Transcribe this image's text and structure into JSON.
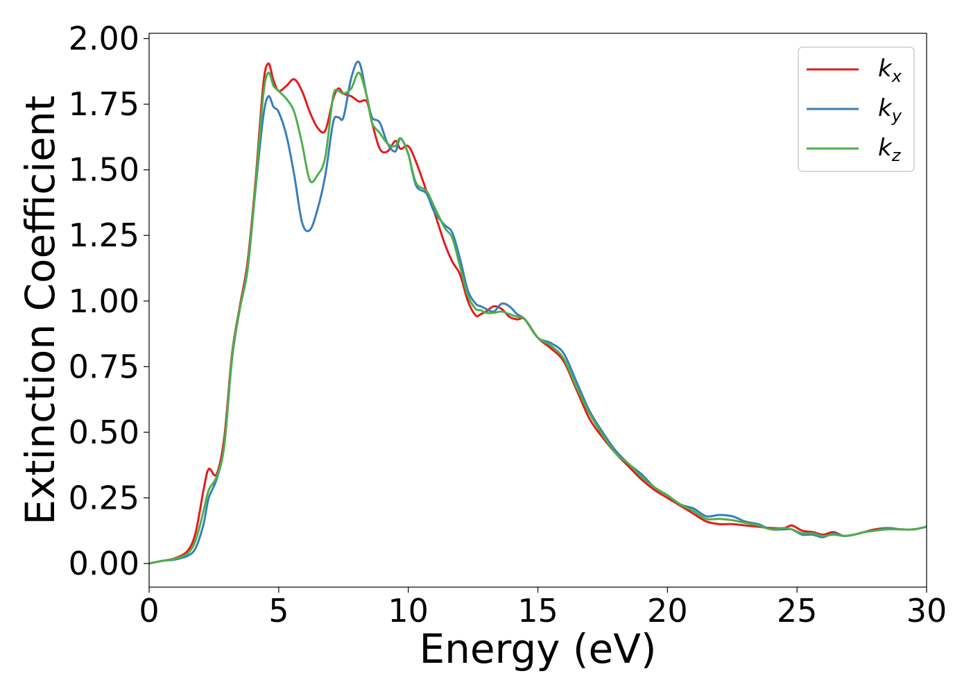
{
  "chart_data": {
    "type": "line",
    "title": "",
    "xlabel": "Energy (eV)",
    "ylabel": "Extinction Coefficient",
    "xlim": [
      0,
      30
    ],
    "ylim": [
      -0.09,
      2.02
    ],
    "xticks": [
      0,
      5,
      10,
      15,
      20,
      25,
      30
    ],
    "xtick_labels": [
      "0",
      "5",
      "10",
      "15",
      "20",
      "25",
      "30"
    ],
    "yticks": [
      0,
      0.25,
      0.5,
      0.75,
      1.0,
      1.25,
      1.5,
      1.75,
      2.0
    ],
    "ytick_labels": [
      "0.00",
      "0.25",
      "0.50",
      "0.75",
      "1.00",
      "1.25",
      "1.50",
      "1.75",
      "2.00"
    ],
    "grid": false,
    "legend": {
      "position": "top-right"
    },
    "series": [
      {
        "name": "k_x",
        "label_base": "k",
        "label_sub": "x",
        "color": "#e41a1c",
        "x": [
          0,
          0.5,
          1.0,
          1.5,
          1.8,
          2.1,
          2.3,
          2.6,
          2.9,
          3.2,
          3.5,
          3.8,
          4.1,
          4.4,
          4.6,
          4.8,
          5.0,
          5.3,
          5.6,
          5.9,
          6.2,
          6.5,
          6.8,
          7.1,
          7.3,
          7.5,
          7.8,
          8.1,
          8.4,
          8.6,
          8.9,
          9.2,
          9.5,
          9.7,
          10.0,
          10.3,
          10.7,
          11.0,
          11.4,
          11.7,
          12.0,
          12.3,
          12.6,
          12.8,
          13.0,
          13.3,
          13.6,
          13.9,
          14.2,
          14.5,
          15.0,
          15.5,
          16.0,
          16.5,
          17.0,
          17.5,
          18.0,
          18.5,
          19.0,
          19.5,
          20.0,
          20.5,
          21.0,
          21.5,
          22.0,
          22.5,
          23.0,
          23.5,
          24.0,
          24.5,
          24.8,
          25.2,
          25.6,
          26.0,
          26.4,
          26.8,
          27.2,
          27.6,
          28.0,
          28.5,
          29.0,
          29.5,
          30.0
        ],
        "y": [
          0.0,
          0.01,
          0.02,
          0.05,
          0.12,
          0.28,
          0.36,
          0.34,
          0.48,
          0.8,
          0.98,
          1.15,
          1.45,
          1.82,
          1.905,
          1.84,
          1.8,
          1.82,
          1.845,
          1.8,
          1.72,
          1.66,
          1.65,
          1.77,
          1.81,
          1.79,
          1.78,
          1.76,
          1.76,
          1.68,
          1.58,
          1.57,
          1.61,
          1.58,
          1.59,
          1.53,
          1.42,
          1.34,
          1.22,
          1.15,
          1.1,
          1.0,
          0.945,
          0.95,
          0.96,
          0.98,
          0.97,
          0.94,
          0.93,
          0.93,
          0.86,
          0.82,
          0.77,
          0.66,
          0.55,
          0.48,
          0.42,
          0.37,
          0.32,
          0.28,
          0.25,
          0.22,
          0.19,
          0.16,
          0.15,
          0.15,
          0.145,
          0.14,
          0.135,
          0.135,
          0.145,
          0.125,
          0.12,
          0.11,
          0.12,
          0.105,
          0.11,
          0.12,
          0.13,
          0.135,
          0.13,
          0.13,
          0.14
        ]
      },
      {
        "name": "k_y",
        "label_base": "k",
        "label_sub": "y",
        "color": "#377eb8",
        "x": [
          0,
          0.5,
          1.0,
          1.5,
          1.8,
          2.1,
          2.3,
          2.6,
          2.9,
          3.2,
          3.5,
          3.8,
          4.1,
          4.4,
          4.6,
          4.8,
          5.0,
          5.3,
          5.6,
          5.9,
          6.2,
          6.5,
          6.8,
          7.1,
          7.3,
          7.5,
          7.8,
          8.1,
          8.4,
          8.6,
          8.9,
          9.2,
          9.5,
          9.7,
          10.0,
          10.3,
          10.7,
          11.0,
          11.4,
          11.7,
          12.0,
          12.3,
          12.6,
          12.8,
          13.0,
          13.3,
          13.6,
          13.9,
          14.2,
          14.5,
          15.0,
          15.5,
          16.0,
          16.5,
          17.0,
          17.5,
          18.0,
          18.5,
          19.0,
          19.5,
          20.0,
          20.5,
          21.0,
          21.5,
          22.0,
          22.5,
          23.0,
          23.5,
          24.0,
          24.5,
          24.8,
          25.2,
          25.6,
          26.0,
          26.4,
          26.8,
          27.2,
          27.6,
          28.0,
          28.5,
          29.0,
          29.5,
          30.0
        ],
        "y": [
          0.0,
          0.01,
          0.015,
          0.03,
          0.06,
          0.15,
          0.25,
          0.32,
          0.45,
          0.78,
          0.97,
          1.12,
          1.42,
          1.7,
          1.78,
          1.74,
          1.72,
          1.63,
          1.48,
          1.3,
          1.27,
          1.35,
          1.48,
          1.68,
          1.7,
          1.7,
          1.85,
          1.91,
          1.78,
          1.7,
          1.68,
          1.6,
          1.57,
          1.62,
          1.56,
          1.44,
          1.41,
          1.34,
          1.29,
          1.26,
          1.16,
          1.04,
          0.99,
          0.98,
          0.97,
          0.96,
          0.99,
          0.98,
          0.95,
          0.93,
          0.86,
          0.84,
          0.8,
          0.69,
          0.58,
          0.5,
          0.43,
          0.38,
          0.34,
          0.29,
          0.26,
          0.225,
          0.21,
          0.18,
          0.185,
          0.18,
          0.16,
          0.15,
          0.13,
          0.13,
          0.13,
          0.11,
          0.11,
          0.1,
          0.115,
          0.105,
          0.11,
          0.12,
          0.125,
          0.135,
          0.13,
          0.13,
          0.14
        ]
      },
      {
        "name": "k_z",
        "label_base": "k",
        "label_sub": "z",
        "color": "#4daf4a",
        "x": [
          0,
          0.5,
          1.0,
          1.5,
          1.8,
          2.1,
          2.3,
          2.6,
          2.9,
          3.2,
          3.5,
          3.8,
          4.1,
          4.4,
          4.6,
          4.8,
          5.0,
          5.3,
          5.6,
          5.9,
          6.2,
          6.5,
          6.8,
          7.1,
          7.3,
          7.5,
          7.8,
          8.1,
          8.4,
          8.6,
          8.9,
          9.2,
          9.5,
          9.7,
          10.0,
          10.3,
          10.7,
          11.0,
          11.4,
          11.7,
          12.0,
          12.3,
          12.6,
          12.8,
          13.0,
          13.3,
          13.6,
          13.9,
          14.2,
          14.5,
          15.0,
          15.5,
          16.0,
          16.5,
          17.0,
          17.5,
          18.0,
          18.5,
          19.0,
          19.5,
          20.0,
          20.5,
          21.0,
          21.5,
          22.0,
          22.5,
          23.0,
          23.5,
          24.0,
          24.5,
          24.8,
          25.2,
          25.6,
          26.0,
          26.4,
          26.8,
          27.2,
          27.6,
          28.0,
          28.5,
          29.0,
          29.5,
          30.0
        ],
        "y": [
          0.0,
          0.01,
          0.018,
          0.04,
          0.09,
          0.2,
          0.28,
          0.33,
          0.45,
          0.79,
          0.97,
          1.13,
          1.43,
          1.78,
          1.87,
          1.82,
          1.8,
          1.77,
          1.72,
          1.6,
          1.46,
          1.48,
          1.55,
          1.78,
          1.8,
          1.79,
          1.81,
          1.87,
          1.78,
          1.68,
          1.64,
          1.6,
          1.59,
          1.62,
          1.56,
          1.45,
          1.42,
          1.36,
          1.28,
          1.24,
          1.13,
          1.02,
          0.97,
          0.965,
          0.955,
          0.955,
          0.96,
          0.95,
          0.94,
          0.93,
          0.86,
          0.83,
          0.78,
          0.67,
          0.57,
          0.49,
          0.42,
          0.38,
          0.33,
          0.29,
          0.26,
          0.225,
          0.2,
          0.17,
          0.17,
          0.165,
          0.155,
          0.145,
          0.13,
          0.135,
          0.13,
          0.115,
          0.115,
          0.105,
          0.11,
          0.105,
          0.11,
          0.12,
          0.125,
          0.13,
          0.13,
          0.13,
          0.14
        ]
      }
    ]
  }
}
